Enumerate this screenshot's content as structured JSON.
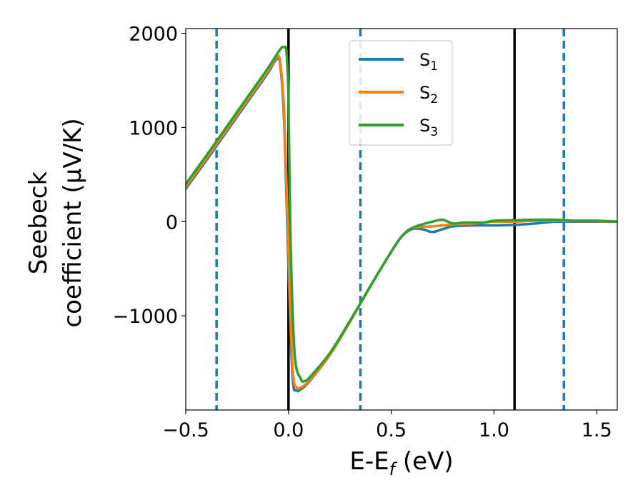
{
  "chart_data": {
    "type": "line",
    "xlabel": "E-E",
    "xlabel_sub": "f",
    "xlabel_unit": " (eV)",
    "ylabel_line1": "Seebeck",
    "ylabel_line2": "coefficient  (μV/K)",
    "xlim": [
      -0.5,
      1.6
    ],
    "ylim": [
      -2000,
      2050
    ],
    "x_ticks": [
      -0.5,
      0.0,
      0.5,
      1.0,
      1.5
    ],
    "x_tick_labels": [
      "−0.5",
      "0.0",
      "0.5",
      "1.0",
      "1.5"
    ],
    "y_ticks": [
      -1000,
      0,
      1000,
      2000
    ],
    "y_tick_labels": [
      "−1000",
      "0",
      "1000",
      "2000"
    ],
    "grid": false,
    "legend_placement": "top-center",
    "vertical_lines": [
      {
        "x": -0.35,
        "style": "dashed",
        "color": "#1f77b4"
      },
      {
        "x": 0.0,
        "style": "solid",
        "color": "#000000"
      },
      {
        "x": 0.35,
        "style": "dashed",
        "color": "#1f77b4"
      },
      {
        "x": 1.1,
        "style": "solid",
        "color": "#000000"
      },
      {
        "x": 1.34,
        "style": "dashed",
        "color": "#1f77b4"
      }
    ],
    "series": [
      {
        "name": "S",
        "subscript": "1",
        "color": "#1f77b4",
        "points": [
          [
            -0.5,
            350
          ],
          [
            -0.4,
            650
          ],
          [
            -0.3,
            960
          ],
          [
            -0.2,
            1270
          ],
          [
            -0.1,
            1580
          ],
          [
            -0.06,
            1720
          ],
          [
            -0.04,
            1660
          ],
          [
            -0.02,
            1000
          ],
          [
            0.0,
            -500
          ],
          [
            0.02,
            -1650
          ],
          [
            0.04,
            -1790
          ],
          [
            0.06,
            -1780
          ],
          [
            0.1,
            -1700
          ],
          [
            0.2,
            -1420
          ],
          [
            0.3,
            -1060
          ],
          [
            0.4,
            -680
          ],
          [
            0.5,
            -320
          ],
          [
            0.55,
            -160
          ],
          [
            0.6,
            -80
          ],
          [
            0.65,
            -80
          ],
          [
            0.7,
            -110
          ],
          [
            0.75,
            -80
          ],
          [
            0.8,
            -50
          ],
          [
            0.9,
            -40
          ],
          [
            1.0,
            -40
          ],
          [
            1.1,
            -35
          ],
          [
            1.2,
            -20
          ],
          [
            1.3,
            0
          ],
          [
            1.4,
            0
          ],
          [
            1.5,
            0
          ],
          [
            1.6,
            0
          ]
        ]
      },
      {
        "name": "S",
        "subscript": "2",
        "color": "#ff7f0e",
        "points": [
          [
            -0.5,
            370
          ],
          [
            -0.4,
            670
          ],
          [
            -0.3,
            980
          ],
          [
            -0.2,
            1290
          ],
          [
            -0.1,
            1600
          ],
          [
            -0.06,
            1740
          ],
          [
            -0.04,
            1690
          ],
          [
            -0.02,
            1100
          ],
          [
            0.0,
            -300
          ],
          [
            0.02,
            -1550
          ],
          [
            0.04,
            -1760
          ],
          [
            0.06,
            -1760
          ],
          [
            0.1,
            -1690
          ],
          [
            0.2,
            -1420
          ],
          [
            0.3,
            -1060
          ],
          [
            0.4,
            -680
          ],
          [
            0.5,
            -320
          ],
          [
            0.55,
            -160
          ],
          [
            0.6,
            -70
          ],
          [
            0.7,
            -50
          ],
          [
            0.8,
            -30
          ],
          [
            0.9,
            -20
          ],
          [
            1.0,
            0
          ],
          [
            1.1,
            0
          ],
          [
            1.2,
            10
          ],
          [
            1.3,
            10
          ],
          [
            1.4,
            5
          ],
          [
            1.5,
            5
          ],
          [
            1.6,
            0
          ]
        ]
      },
      {
        "name": "S",
        "subscript": "3",
        "color": "#2ca02c",
        "points": [
          [
            -0.5,
            400
          ],
          [
            -0.4,
            700
          ],
          [
            -0.3,
            1010
          ],
          [
            -0.2,
            1320
          ],
          [
            -0.1,
            1630
          ],
          [
            -0.04,
            1830
          ],
          [
            -0.02,
            1850
          ],
          [
            -0.01,
            1800
          ],
          [
            0.0,
            1300
          ],
          [
            0.01,
            -200
          ],
          [
            0.03,
            -1400
          ],
          [
            0.06,
            -1670
          ],
          [
            0.08,
            -1690
          ],
          [
            0.1,
            -1660
          ],
          [
            0.2,
            -1400
          ],
          [
            0.3,
            -1050
          ],
          [
            0.4,
            -680
          ],
          [
            0.5,
            -320
          ],
          [
            0.55,
            -160
          ],
          [
            0.6,
            -70
          ],
          [
            0.65,
            -30
          ],
          [
            0.7,
            0
          ],
          [
            0.75,
            20
          ],
          [
            0.8,
            -20
          ],
          [
            0.85,
            -10
          ],
          [
            0.9,
            -10
          ],
          [
            0.95,
            -10
          ],
          [
            1.0,
            10
          ],
          [
            1.1,
            15
          ],
          [
            1.2,
            20
          ],
          [
            1.3,
            20
          ],
          [
            1.4,
            10
          ],
          [
            1.5,
            10
          ],
          [
            1.6,
            0
          ]
        ]
      }
    ]
  }
}
